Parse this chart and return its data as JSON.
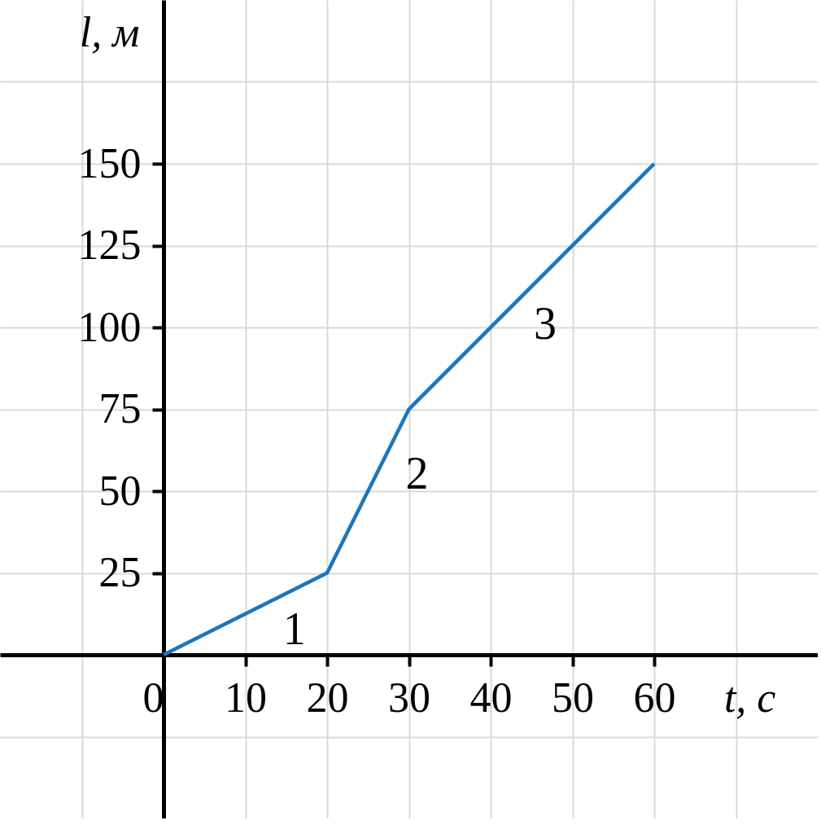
{
  "chart_data": {
    "type": "line",
    "xlabel": "t, с",
    "ylabel": "l, м",
    "x": [
      0,
      20,
      30,
      60
    ],
    "series": [
      {
        "color": "#1b75bc",
        "values": [
          0,
          25,
          75,
          150
        ]
      }
    ],
    "xlim": [
      -20,
      80
    ],
    "ylim": [
      -50,
      200
    ],
    "xticks": [
      {
        "value": -10,
        "label": null
      },
      0,
      10,
      20,
      30,
      40,
      50,
      60,
      {
        "value": 70,
        "label": null
      }
    ],
    "yticks": [
      {
        "value": -25,
        "label": null
      },
      {
        "value": 0,
        "label": null
      },
      25,
      50,
      75,
      100,
      125,
      150,
      {
        "value": 175,
        "label": null
      }
    ],
    "grid": true,
    "marker": "none",
    "line_style": "solid",
    "annotations": [
      "1",
      "2",
      "3"
    ]
  }
}
